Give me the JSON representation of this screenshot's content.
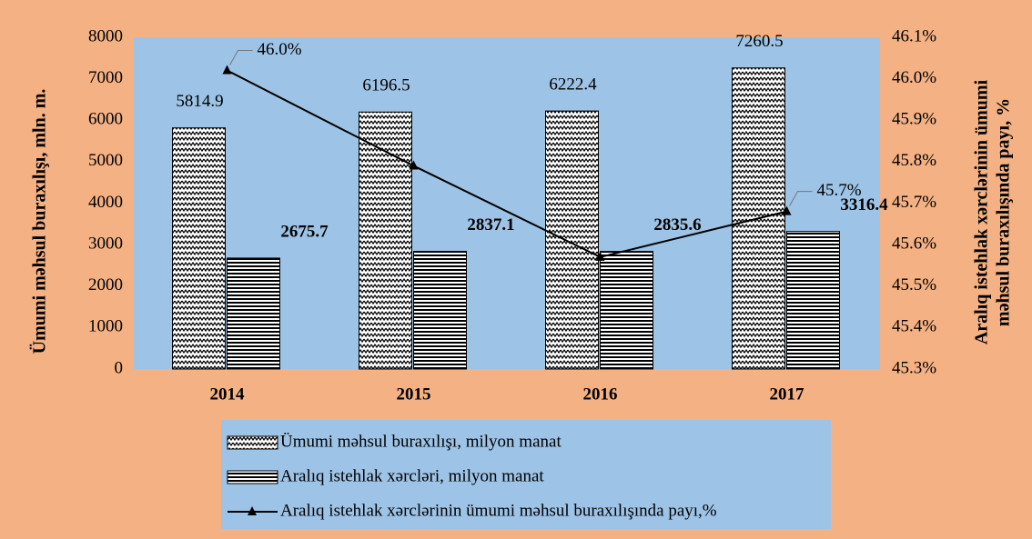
{
  "chart_data": {
    "type": "bar",
    "categories": [
      "2014",
      "2015",
      "2016",
      "2017"
    ],
    "series": [
      {
        "name": "Ümumi məhsul buraxılışı, milyon manat",
        "type": "bar",
        "pattern": "zigzag",
        "color": "#000000",
        "values": [
          5814.9,
          6196.5,
          6222.4,
          7260.5
        ]
      },
      {
        "name": "Aralıq istehlak xərcləri, milyon manat",
        "type": "bar",
        "pattern": "horizontal",
        "color": "#000000",
        "bold_labels": true,
        "values": [
          2675.7,
          2837.1,
          2835.6,
          3316.4
        ]
      },
      {
        "name": "Aralıq istehlak xərclərinin ümumi məhsul buraxılışında payı,%",
        "type": "line",
        "axis": "y2",
        "color": "#000000",
        "marker": "triangle",
        "values": [
          46.02,
          45.79,
          45.57,
          45.68
        ],
        "value_labels": [
          "46.0%",
          null,
          null,
          "45.7%"
        ]
      }
    ],
    "y_label": "Ümumi məhsul buraxılışı, mln. m.",
    "y2_label": [
      "Aralıq istehlak xərclərinin ümumi",
      "məhsul buraxılışında payı, %"
    ],
    "ylim": [
      0,
      8000
    ],
    "yticks": [
      0,
      1000,
      2000,
      3000,
      4000,
      5000,
      6000,
      7000,
      8000
    ],
    "y2lim": [
      45.3,
      46.1
    ],
    "y2ticks": [
      {
        "value": 45.3,
        "label": "45.3%"
      },
      {
        "value": 45.4,
        "label": "45.4%"
      },
      {
        "value": 45.5,
        "label": "45.5%"
      },
      {
        "value": 45.6,
        "label": "45.6%"
      },
      {
        "value": 45.7,
        "label": "45.7%"
      },
      {
        "value": 45.8,
        "label": "45.8%"
      },
      {
        "value": 45.9,
        "label": "45.9%"
      },
      {
        "value": 46.0,
        "label": "46.0%"
      },
      {
        "value": 46.1,
        "label": "46.1%"
      }
    ],
    "plot_background": "#9dc3e6",
    "legend": "bottom"
  }
}
